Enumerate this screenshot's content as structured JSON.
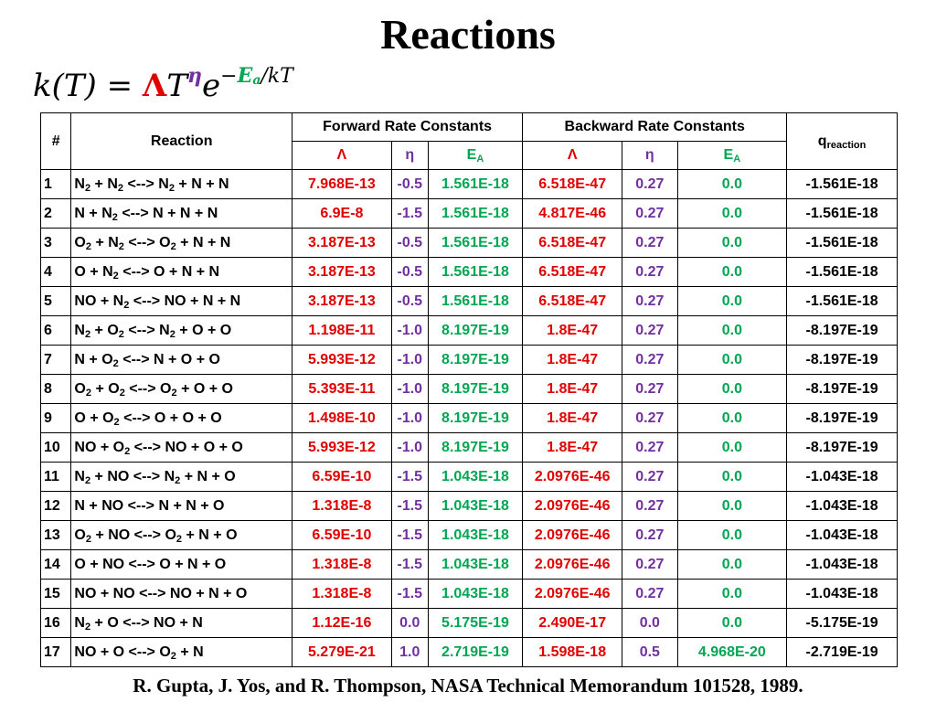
{
  "title": "Reactions",
  "formula": {
    "lhs": "k(T) = ",
    "lambda": "Λ",
    "T": "T",
    "eta": "η",
    "e": "e",
    "minus": "−",
    "E": "E",
    "a": "a",
    "tail": "/kT"
  },
  "table": {
    "headers": {
      "num": "#",
      "reaction": "Reaction",
      "forward": "Forward Rate Constants",
      "backward": "Backward Rate Constants",
      "q": "q",
      "q_sub": "reaction",
      "lambda": "Λ",
      "eta": "η",
      "ea": "E",
      "ea_sub": "A"
    },
    "rows": [
      {
        "num": "1",
        "reaction": [
          [
            "N",
            "2"
          ],
          [
            " + N",
            ""
          ],
          [
            "2",
            ""
          ],
          [
            " <--> N",
            ""
          ],
          [
            "2",
            ""
          ],
          [
            " + N + N",
            ""
          ]
        ],
        "rtext": "N|2| + N|2| <--> N|2| + N + N",
        "f_lambda": "7.968E-13",
        "f_eta": "-0.5",
        "f_ea": "1.561E-18",
        "b_lambda": "6.518E-47",
        "b_eta": "0.27",
        "b_ea": "0.0",
        "q": "-1.561E-18"
      },
      {
        "num": "2",
        "rtext": "N + N|2| <--> N + N + N",
        "f_lambda": "6.9E-8",
        "f_eta": "-1.5",
        "f_ea": "1.561E-18",
        "b_lambda": "4.817E-46",
        "b_eta": "0.27",
        "b_ea": "0.0",
        "q": "-1.561E-18"
      },
      {
        "num": "3",
        "rtext": "O|2| + N|2| <--> O|2| + N + N",
        "f_lambda": "3.187E-13",
        "f_eta": "-0.5",
        "f_ea": "1.561E-18",
        "b_lambda": "6.518E-47",
        "b_eta": "0.27",
        "b_ea": "0.0",
        "q": "-1.561E-18"
      },
      {
        "num": "4",
        "rtext": "O + N|2| <--> O + N + N",
        "f_lambda": "3.187E-13",
        "f_eta": "-0.5",
        "f_ea": "1.561E-18",
        "b_lambda": "6.518E-47",
        "b_eta": "0.27",
        "b_ea": "0.0",
        "q": "-1.561E-18"
      },
      {
        "num": "5",
        "rtext": "NO + N|2| <--> NO + N + N",
        "f_lambda": "3.187E-13",
        "f_eta": "-0.5",
        "f_ea": "1.561E-18",
        "b_lambda": "6.518E-47",
        "b_eta": "0.27",
        "b_ea": "0.0",
        "q": "-1.561E-18"
      },
      {
        "num": "6",
        "rtext": "N|2| + O|2| <--> N|2| + O + O",
        "f_lambda": "1.198E-11",
        "f_eta": "-1.0",
        "f_ea": "8.197E-19",
        "b_lambda": "1.8E-47",
        "b_eta": "0.27",
        "b_ea": "0.0",
        "q": "-8.197E-19"
      },
      {
        "num": "7",
        "rtext": "N + O|2| <--> N + O + O",
        "f_lambda": "5.993E-12",
        "f_eta": "-1.0",
        "f_ea": "8.197E-19",
        "b_lambda": "1.8E-47",
        "b_eta": "0.27",
        "b_ea": "0.0",
        "q": "-8.197E-19"
      },
      {
        "num": "8",
        "rtext": "O|2| + O|2| <--> O|2| + O + O",
        "f_lambda": "5.393E-11",
        "f_eta": "-1.0",
        "f_ea": "8.197E-19",
        "b_lambda": "1.8E-47",
        "b_eta": "0.27",
        "b_ea": "0.0",
        "q": "-8.197E-19"
      },
      {
        "num": "9",
        "rtext": "O + O|2| <--> O + O + O",
        "f_lambda": "1.498E-10",
        "f_eta": "-1.0",
        "f_ea": "8.197E-19",
        "b_lambda": "1.8E-47",
        "b_eta": "0.27",
        "b_ea": "0.0",
        "q": "-8.197E-19"
      },
      {
        "num": "10",
        "rtext": "NO + O|2| <--> NO + O + O",
        "f_lambda": "5.993E-12",
        "f_eta": "-1.0",
        "f_ea": "8.197E-19",
        "b_lambda": "1.8E-47",
        "b_eta": "0.27",
        "b_ea": "0.0",
        "q": "-8.197E-19"
      },
      {
        "num": "11",
        "rtext": "N|2| + NO <--> N|2| + N + O",
        "f_lambda": "6.59E-10",
        "f_eta": "-1.5",
        "f_ea": "1.043E-18",
        "b_lambda": "2.0976E-46",
        "b_eta": "0.27",
        "b_ea": "0.0",
        "q": "-1.043E-18"
      },
      {
        "num": "12",
        "rtext": "N + NO <--> N + N + O",
        "f_lambda": "1.318E-8",
        "f_eta": "-1.5",
        "f_ea": "1.043E-18",
        "b_lambda": "2.0976E-46",
        "b_eta": "0.27",
        "b_ea": "0.0",
        "q": "-1.043E-18"
      },
      {
        "num": "13",
        "rtext": "O|2| + NO <--> O|2| + N + O",
        "f_lambda": "6.59E-10",
        "f_eta": "-1.5",
        "f_ea": "1.043E-18",
        "b_lambda": "2.0976E-46",
        "b_eta": "0.27",
        "b_ea": "0.0",
        "q": "-1.043E-18"
      },
      {
        "num": "14",
        "rtext": "O + NO <--> O + N + O",
        "f_lambda": "1.318E-8",
        "f_eta": "-1.5",
        "f_ea": "1.043E-18",
        "b_lambda": "2.0976E-46",
        "b_eta": "0.27",
        "b_ea": "0.0",
        "q": "-1.043E-18"
      },
      {
        "num": "15",
        "rtext": "NO + NO <--> NO + N + O",
        "f_lambda": "1.318E-8",
        "f_eta": "-1.5",
        "f_ea": "1.043E-18",
        "b_lambda": "2.0976E-46",
        "b_eta": "0.27",
        "b_ea": "0.0",
        "q": "-1.043E-18"
      },
      {
        "num": "16",
        "rtext": "N|2| + O <--> NO + N",
        "f_lambda": "1.12E-16",
        "f_eta": "0.0",
        "f_ea": "5.175E-19",
        "b_lambda": "2.490E-17",
        "b_eta": "0.0",
        "b_ea": "0.0",
        "q": "-5.175E-19"
      },
      {
        "num": "17",
        "rtext": "NO + O <--> O|2| + N",
        "f_lambda": "5.279E-21",
        "f_eta": "1.0",
        "f_ea": "2.719E-19",
        "b_lambda": "1.598E-18",
        "b_eta": "0.5",
        "b_ea": "4.968E-20",
        "q": "-2.719E-19"
      }
    ]
  },
  "citation": "R. Gupta, J. Yos, and R. Thompson, NASA Technical Memorandum 101528, 1989.",
  "colors": {
    "lambda": "#e00000",
    "eta": "#7030a0",
    "ea": "#00a651"
  }
}
